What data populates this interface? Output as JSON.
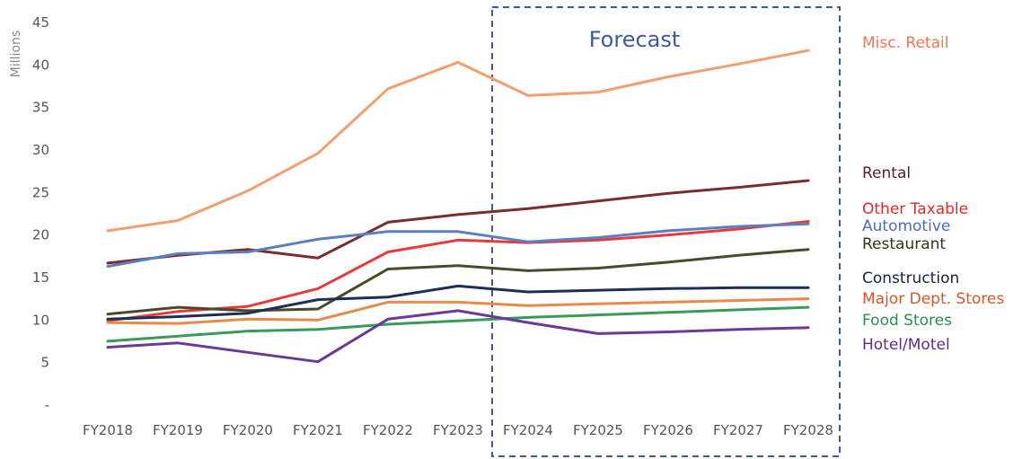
{
  "chart_data": {
    "type": "line",
    "title": "",
    "xlabel": "",
    "ylabel": "Millions",
    "ylim": [
      0,
      45
    ],
    "y_ticks": [
      {
        "value": 0,
        "label": "-"
      },
      {
        "value": 5,
        "label": "5"
      },
      {
        "value": 10,
        "label": "10"
      },
      {
        "value": 15,
        "label": "15"
      },
      {
        "value": 20,
        "label": "20"
      },
      {
        "value": 25,
        "label": "25"
      },
      {
        "value": 30,
        "label": "30"
      },
      {
        "value": 35,
        "label": "35"
      },
      {
        "value": 40,
        "label": "40"
      },
      {
        "value": 45,
        "label": "45"
      }
    ],
    "categories": [
      "FY2018",
      "FY2019",
      "FY2020",
      "FY2021",
      "FY2022",
      "FY2023",
      "FY2024",
      "FY2025",
      "FY2026",
      "FY2027",
      "FY2028"
    ],
    "grid": false,
    "legend_position": "right",
    "annotation": {
      "text": "Forecast",
      "from": "FY2024",
      "to": "FY2028",
      "color": "#3f5a9a"
    },
    "series": [
      {
        "name": "Misc. Retail",
        "color": "#f0a070",
        "label_color": "#e8795a",
        "values": [
          20.4,
          21.6,
          25.1,
          29.5,
          37.1,
          40.2,
          36.3,
          36.7,
          38.5,
          40.0,
          41.6
        ]
      },
      {
        "name": "Rental",
        "color": "#7b2d2d",
        "label_color": "#5a2222",
        "values": [
          16.6,
          17.5,
          18.2,
          17.2,
          21.4,
          22.3,
          23.0,
          23.9,
          24.8,
          25.5,
          26.3
        ]
      },
      {
        "name": "Other Taxable",
        "color": "#e83a3a",
        "label_color": "#e02a2a",
        "values": [
          9.8,
          10.9,
          11.5,
          13.6,
          17.9,
          19.3,
          19.0,
          19.3,
          19.9,
          20.6,
          21.5
        ]
      },
      {
        "name": "Automotive",
        "color": "#5b7fc0",
        "label_color": "#4a6cc0",
        "values": [
          16.2,
          17.7,
          17.9,
          19.4,
          20.3,
          20.3,
          19.1,
          19.6,
          20.4,
          20.9,
          21.2
        ]
      },
      {
        "name": "Restaurant",
        "color": "#4a4a2a",
        "label_color": "#333322",
        "values": [
          10.6,
          11.4,
          11.0,
          11.2,
          15.9,
          16.3,
          15.7,
          16.0,
          16.7,
          17.5,
          18.2
        ]
      },
      {
        "name": "Construction",
        "color": "#1e2f55",
        "label_color": "#1a2240",
        "values": [
          10.0,
          10.3,
          10.7,
          12.3,
          12.6,
          13.9,
          13.2,
          13.4,
          13.6,
          13.7,
          13.7
        ]
      },
      {
        "name": "Major Dept. Stores",
        "color": "#e88a4a",
        "label_color": "#d4582a",
        "values": [
          9.6,
          9.5,
          10.0,
          9.9,
          12.0,
          12.0,
          11.6,
          11.8,
          12.0,
          12.2,
          12.4
        ]
      },
      {
        "name": "Food Stores",
        "color": "#3a9a5a",
        "label_color": "#2e8b57",
        "values": [
          7.4,
          8.0,
          8.6,
          8.8,
          9.4,
          9.8,
          10.2,
          10.5,
          10.8,
          11.1,
          11.4
        ]
      },
      {
        "name": "Hotel/Motel",
        "color": "#6a3a9a",
        "label_color": "#5a2e8a",
        "values": [
          6.7,
          7.2,
          6.1,
          5.0,
          10.0,
          11.0,
          9.6,
          8.3,
          8.5,
          8.8,
          9.0
        ]
      }
    ]
  }
}
